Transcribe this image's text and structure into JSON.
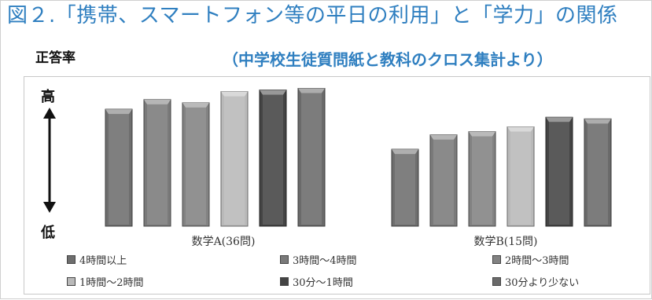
{
  "figure": {
    "title": "図２.「携帯、スマートフォン等の平日の利用」と「学力」の関係",
    "subtitle": "（中学校生徒質問紙と教科のクロス集計より）"
  },
  "chart_data": {
    "type": "bar",
    "ylabel": "正答率",
    "y_high_label": "高",
    "y_low_label": "低",
    "categories": [
      "数学A(36問)",
      "数学B(15問)"
    ],
    "ylim": [
      0,
      100
    ],
    "grid": false,
    "legend_position": "bottom",
    "series": [
      {
        "name": "4時間以上",
        "values": [
          73,
          48
        ],
        "color": "#6e6e6e"
      },
      {
        "name": "3時間～4時間",
        "values": [
          79,
          57
        ],
        "color": "#7a7a7a"
      },
      {
        "name": "2時間～3時間",
        "values": [
          77,
          59
        ],
        "color": "#828282"
      },
      {
        "name": "1時間～2時間",
        "values": [
          84,
          62
        ],
        "color": "#b9b9b9"
      },
      {
        "name": "30分～1時間",
        "values": [
          85,
          68
        ],
        "color": "#444444"
      },
      {
        "name": "30分より少ない",
        "values": [
          86,
          67
        ],
        "color": "#6a6a6a"
      }
    ]
  }
}
